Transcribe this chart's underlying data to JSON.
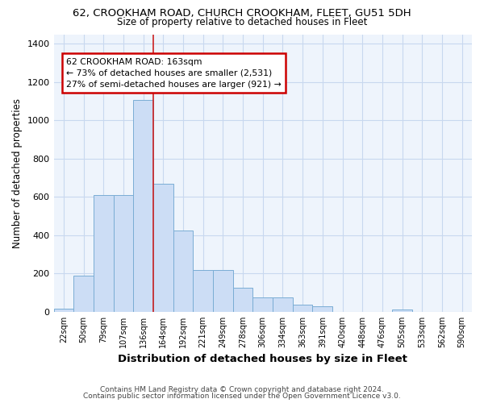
{
  "title": "62, CROOKHAM ROAD, CHURCH CROOKHAM, FLEET, GU51 5DH",
  "subtitle": "Size of property relative to detached houses in Fleet",
  "xlabel": "Distribution of detached houses by size in Fleet",
  "ylabel": "Number of detached properties",
  "categories": [
    "22sqm",
    "50sqm",
    "79sqm",
    "107sqm",
    "136sqm",
    "164sqm",
    "192sqm",
    "221sqm",
    "249sqm",
    "278sqm",
    "306sqm",
    "334sqm",
    "363sqm",
    "391sqm",
    "420sqm",
    "448sqm",
    "476sqm",
    "505sqm",
    "533sqm",
    "562sqm",
    "590sqm"
  ],
  "values": [
    15,
    190,
    610,
    610,
    1105,
    670,
    425,
    220,
    220,
    125,
    75,
    75,
    38,
    30,
    0,
    0,
    0,
    12,
    0,
    0,
    0
  ],
  "bar_color": "#ccddf5",
  "bar_edge_color": "#7aadd4",
  "vline_color": "#cc2222",
  "vline_x": 4.5,
  "annotation_box_color": "#ffffff",
  "annotation_box_edge": "#cc0000",
  "property_label": "62 CROOKHAM ROAD: 163sqm",
  "annotation_line1": "← 73% of detached houses are smaller (2,531)",
  "annotation_line2": "27% of semi-detached houses are larger (921) →",
  "background_color": "#ffffff",
  "plot_bg_color": "#eef4fc",
  "grid_color": "#c8d8ef",
  "footer_line1": "Contains HM Land Registry data © Crown copyright and database right 2024.",
  "footer_line2": "Contains public sector information licensed under the Open Government Licence v3.0.",
  "ylim": [
    0,
    1450
  ],
  "yticks": [
    0,
    200,
    400,
    600,
    800,
    1000,
    1200,
    1400
  ]
}
